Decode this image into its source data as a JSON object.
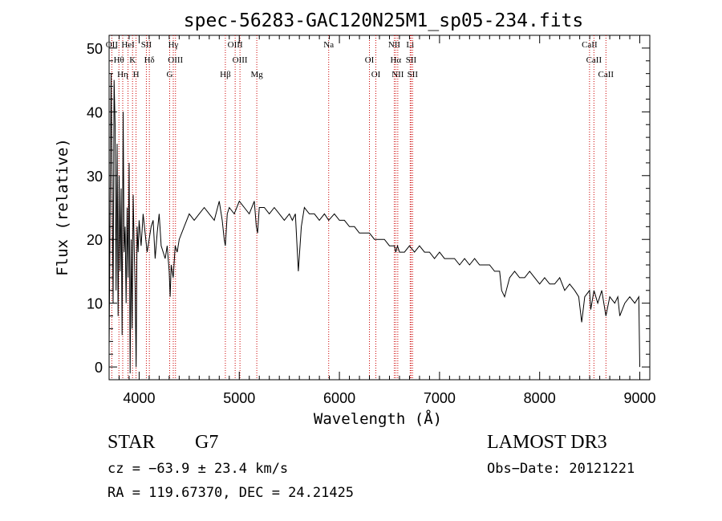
{
  "chart_data": {
    "type": "line",
    "title": "spec-56283-GAC120N25M1_sp05-234.fits",
    "xlabel": "Wavelength (Å)",
    "ylabel": "Flux (relative)",
    "xlim": [
      3700,
      9100
    ],
    "ylim": [
      -2,
      52
    ],
    "xticks": [
      4000,
      5000,
      6000,
      7000,
      8000,
      9000
    ],
    "yticks": [
      0,
      10,
      20,
      30,
      40,
      50
    ],
    "series": [
      {
        "name": "flux",
        "x": [
          3700,
          3720,
          3740,
          3750,
          3760,
          3770,
          3780,
          3790,
          3800,
          3810,
          3820,
          3830,
          3840,
          3850,
          3860,
          3870,
          3880,
          3890,
          3900,
          3910,
          3920,
          3930,
          3940,
          3950,
          3960,
          3970,
          3980,
          3990,
          4000,
          4020,
          4040,
          4060,
          4080,
          4100,
          4120,
          4140,
          4160,
          4180,
          4200,
          4220,
          4240,
          4260,
          4280,
          4300,
          4310,
          4320,
          4340,
          4360,
          4380,
          4400,
          4450,
          4500,
          4550,
          4600,
          4650,
          4700,
          4750,
          4800,
          4830,
          4850,
          4861,
          4880,
          4900,
          4950,
          5000,
          5050,
          5100,
          5150,
          5170,
          5183,
          5200,
          5250,
          5300,
          5350,
          5400,
          5450,
          5500,
          5530,
          5560,
          5590,
          5620,
          5650,
          5700,
          5750,
          5800,
          5850,
          5893,
          5950,
          6000,
          6050,
          6100,
          6150,
          6200,
          6250,
          6300,
          6350,
          6400,
          6450,
          6500,
          6550,
          6563,
          6580,
          6600,
          6650,
          6700,
          6750,
          6800,
          6850,
          6900,
          6950,
          7000,
          7050,
          7100,
          7150,
          7200,
          7250,
          7300,
          7350,
          7400,
          7450,
          7500,
          7550,
          7600,
          7620,
          7650,
          7700,
          7750,
          7800,
          7850,
          7900,
          7950,
          8000,
          8050,
          8100,
          8150,
          8200,
          8250,
          8300,
          8350,
          8390,
          8420,
          8450,
          8498,
          8510,
          8542,
          8580,
          8620,
          8662,
          8700,
          8750,
          8780,
          8800,
          8850,
          8900,
          8950,
          8990,
          9000
        ],
        "y": [
          3,
          46,
          10,
          45,
          38,
          12,
          35,
          8,
          30,
          15,
          28,
          5,
          40,
          18,
          22,
          10,
          25,
          14,
          32,
          -1,
          20,
          6,
          27,
          19,
          12,
          0,
          22,
          18,
          23,
          19,
          24,
          21,
          18,
          20,
          22,
          23,
          17,
          21,
          24,
          19,
          18,
          17,
          19,
          15,
          11,
          16,
          14,
          19,
          18,
          20,
          22,
          24,
          23,
          24,
          25,
          24,
          23,
          26,
          23,
          20,
          19,
          24,
          25,
          24,
          26,
          25,
          24,
          26,
          22,
          21,
          25,
          25,
          24,
          25,
          24,
          23,
          24,
          23,
          24,
          15,
          22,
          25,
          24,
          24,
          23,
          24,
          23,
          24,
          23,
          23,
          22,
          22,
          21,
          21,
          21,
          20,
          20,
          20,
          19,
          19,
          18,
          19,
          18,
          18,
          19,
          18,
          19,
          18,
          18,
          17,
          18,
          17,
          17,
          17,
          16,
          17,
          16,
          17,
          16,
          16,
          16,
          15,
          15,
          12,
          11,
          14,
          15,
          14,
          14,
          15,
          14,
          13,
          14,
          13,
          13,
          14,
          12,
          13,
          12,
          11,
          7,
          11,
          12,
          9,
          12,
          10,
          12,
          8,
          11,
          10,
          11,
          8,
          10,
          11,
          10,
          11,
          0
        ]
      }
    ],
    "lines": [
      {
        "label": "OII",
        "wavelength": 3727
      },
      {
        "label": "Hθ",
        "wavelength": 3798
      },
      {
        "label": "Hη",
        "wavelength": 3836
      },
      {
        "label": "HeI",
        "wavelength": 3889
      },
      {
        "label": "K",
        "wavelength": 3934
      },
      {
        "label": "H",
        "wavelength": 3969
      },
      {
        "label": "SII",
        "wavelength": 4072
      },
      {
        "label": "Hδ",
        "wavelength": 4102
      },
      {
        "label": "G",
        "wavelength": 4305
      },
      {
        "label": "Hγ",
        "wavelength": 4341
      },
      {
        "label": "OIII",
        "wavelength": 4363
      },
      {
        "label": "Hβ",
        "wavelength": 4861
      },
      {
        "label": "OIII",
        "wavelength": 4959
      },
      {
        "label": "OIII",
        "wavelength": 5007
      },
      {
        "label": "Mg",
        "wavelength": 5175
      },
      {
        "label": "Na",
        "wavelength": 5893
      },
      {
        "label": "OI",
        "wavelength": 6300
      },
      {
        "label": "OI",
        "wavelength": 6364
      },
      {
        "label": "NII",
        "wavelength": 6548
      },
      {
        "label": "Hα",
        "wavelength": 6563
      },
      {
        "label": "NII",
        "wavelength": 6583
      },
      {
        "label": "Li",
        "wavelength": 6707
      },
      {
        "label": "SII",
        "wavelength": 6716
      },
      {
        "label": "SII",
        "wavelength": 6731
      },
      {
        "label": "CaII",
        "wavelength": 8498
      },
      {
        "label": "CaII",
        "wavelength": 8542
      },
      {
        "label": "CaII",
        "wavelength": 8662
      }
    ],
    "line_color": "#cc0000"
  },
  "info": {
    "object_class": "STAR",
    "subclass": "G7",
    "survey": "LAMOST DR3",
    "cz": "cz = −63.9 ± 23.4 km/s",
    "obs_date": "Obs−Date: 20121221",
    "coords": "RA = 119.67370, DEC =  24.21425"
  }
}
